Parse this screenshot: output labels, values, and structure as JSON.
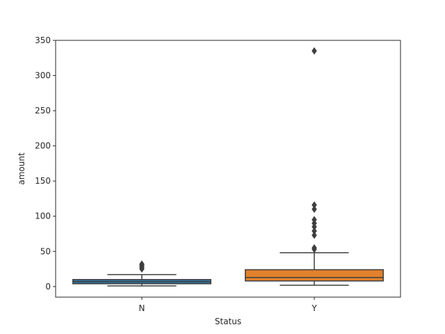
{
  "chart_data": {
    "type": "box",
    "xlabel": "Status",
    "ylabel": "amount",
    "ylim": [
      -15,
      350
    ],
    "yticks": [
      0,
      50,
      100,
      150,
      200,
      250,
      300,
      350
    ],
    "yticklabels": [
      "0",
      "50",
      "100",
      "150",
      "200",
      "250",
      "300",
      "350"
    ],
    "grid": false,
    "categories": [
      "N",
      "Y"
    ],
    "boxes": [
      {
        "category": "N",
        "color": "#3274a1",
        "whisker_low": 1,
        "q1": 4,
        "median": 7,
        "q3": 10,
        "whisker_high": 17,
        "outliers": [
          25,
          27,
          29,
          31,
          32
        ]
      },
      {
        "category": "Y",
        "color": "#e1812c",
        "whisker_low": 2,
        "q1": 8,
        "median": 13,
        "q3": 24,
        "whisker_high": 48,
        "outliers": [
          53,
          55,
          73,
          79,
          85,
          90,
          95,
          110,
          116,
          335
        ]
      }
    ]
  }
}
